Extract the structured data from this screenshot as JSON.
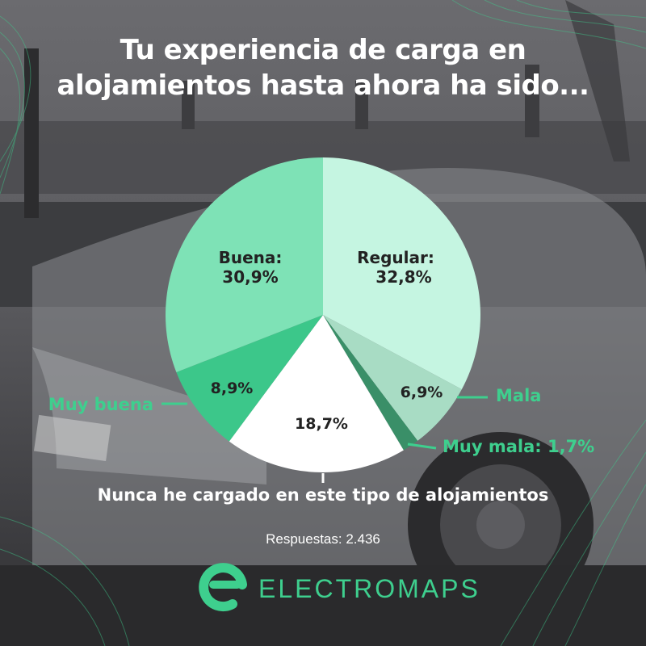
{
  "title_line1": "Tu experiencia de carga en",
  "title_line2": "alojamientos hasta ahora ha sido...",
  "responses": "Respuestas: 2.436",
  "brand": {
    "name": "ELECTROMAPS",
    "logo_icon": "electromaps-e-logo-icon",
    "color": "#3ecf8e"
  },
  "chart_data": {
    "type": "pie",
    "start": "12 o'clock, clockwise",
    "slices": [
      {
        "key": "regular",
        "label": "Regular:",
        "value": 32.8,
        "value_text": "32,8%",
        "color": "#c5f5e1",
        "label_inside": true
      },
      {
        "key": "mala",
        "label": "Mala",
        "value": 6.9,
        "value_text": "6,9%",
        "color": "#a8dcc4",
        "label_inside": false
      },
      {
        "key": "muy-mala",
        "label": "Muy mala: 1,7%",
        "value": 1.7,
        "value_text": "",
        "color": "#3a8f68",
        "label_inside": false
      },
      {
        "key": "nunca",
        "label": "Nunca he cargado en este tipo de alojamientos",
        "value": 18.7,
        "value_text": "18,7%",
        "color": "#ffffff",
        "label_inside": false
      },
      {
        "key": "muy-buena",
        "label": "Muy buena",
        "value": 8.9,
        "value_text": "8,9%",
        "color": "#3cc78a",
        "label_inside": false
      },
      {
        "key": "buena",
        "label": "Buena:",
        "value": 30.9,
        "value_text": "30,9%",
        "color": "#7ee2b6",
        "label_inside": true
      }
    ]
  }
}
